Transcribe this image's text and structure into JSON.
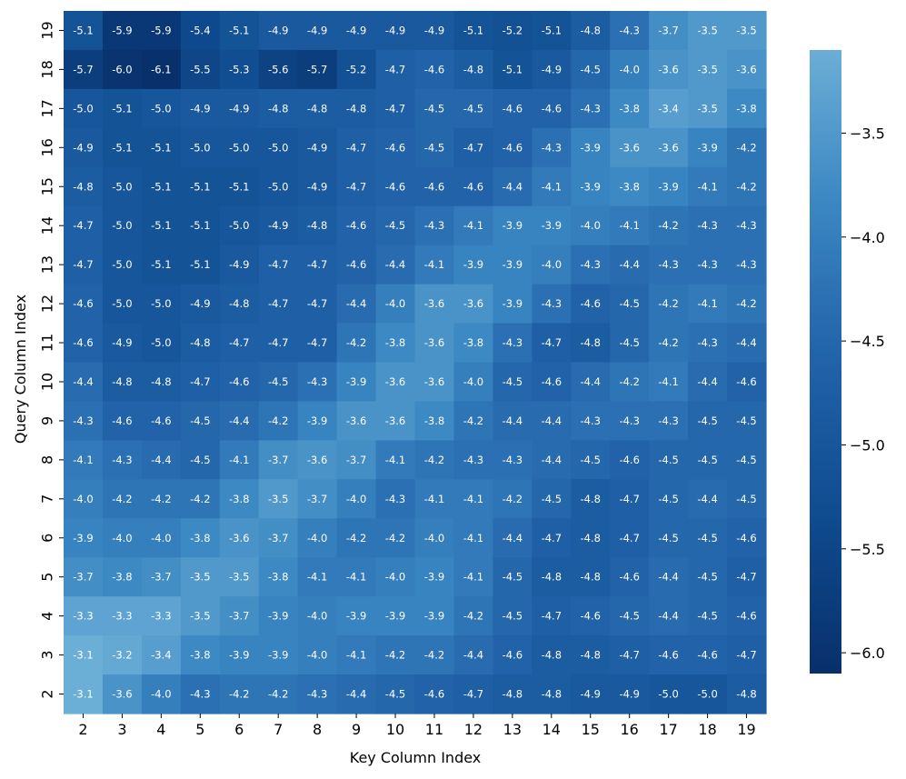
{
  "chart_data": {
    "type": "heatmap",
    "title": "",
    "xlabel": "Key Column Index",
    "ylabel": "Query Column Index",
    "x_categories": [
      "2",
      "3",
      "4",
      "5",
      "6",
      "7",
      "8",
      "9",
      "10",
      "11",
      "12",
      "13",
      "14",
      "15",
      "16",
      "17",
      "18",
      "19"
    ],
    "y_categories_top_to_bottom": [
      "19",
      "18",
      "17",
      "16",
      "15",
      "14",
      "13",
      "12",
      "11",
      "10",
      "9",
      "8",
      "7",
      "6",
      "5",
      "4",
      "3",
      "2"
    ],
    "values": [
      [
        "-5.1",
        "-5.9",
        "-5.9",
        "-5.4",
        "-5.1",
        "-4.9",
        "-4.9",
        "-4.9",
        "-4.9",
        "-4.9",
        "-5.1",
        "-5.2",
        "-5.1",
        "-4.8",
        "-4.3",
        "-3.7",
        "-3.5",
        "-3.5"
      ],
      [
        "-5.7",
        "-6.0",
        "-6.1",
        "-5.5",
        "-5.3",
        "-5.6",
        "-5.7",
        "-5.2",
        "-4.7",
        "-4.6",
        "-4.8",
        "-5.1",
        "-4.9",
        "-4.5",
        "-4.0",
        "-3.6",
        "-3.5",
        "-3.6"
      ],
      [
        "-5.0",
        "-5.1",
        "-5.0",
        "-4.9",
        "-4.9",
        "-4.8",
        "-4.8",
        "-4.8",
        "-4.7",
        "-4.5",
        "-4.5",
        "-4.6",
        "-4.6",
        "-4.3",
        "-3.8",
        "-3.4",
        "-3.5",
        "-3.8"
      ],
      [
        "-4.9",
        "-5.1",
        "-5.1",
        "-5.0",
        "-5.0",
        "-5.0",
        "-4.9",
        "-4.7",
        "-4.6",
        "-4.5",
        "-4.7",
        "-4.6",
        "-4.3",
        "-3.9",
        "-3.6",
        "-3.6",
        "-3.9",
        "-4.2"
      ],
      [
        "-4.8",
        "-5.0",
        "-5.1",
        "-5.1",
        "-5.1",
        "-5.0",
        "-4.9",
        "-4.7",
        "-4.6",
        "-4.6",
        "-4.6",
        "-4.4",
        "-4.1",
        "-3.9",
        "-3.8",
        "-3.9",
        "-4.1",
        "-4.2"
      ],
      [
        "-4.7",
        "-5.0",
        "-5.1",
        "-5.1",
        "-5.0",
        "-4.9",
        "-4.8",
        "-4.6",
        "-4.5",
        "-4.3",
        "-4.1",
        "-3.9",
        "-3.9",
        "-4.0",
        "-4.1",
        "-4.2",
        "-4.3",
        "-4.3"
      ],
      [
        "-4.7",
        "-5.0",
        "-5.1",
        "-5.1",
        "-4.9",
        "-4.7",
        "-4.7",
        "-4.6",
        "-4.4",
        "-4.1",
        "-3.9",
        "-3.9",
        "-4.0",
        "-4.3",
        "-4.4",
        "-4.3",
        "-4.3",
        "-4.3"
      ],
      [
        "-4.6",
        "-5.0",
        "-5.0",
        "-4.9",
        "-4.8",
        "-4.7",
        "-4.7",
        "-4.4",
        "-4.0",
        "-3.6",
        "-3.6",
        "-3.9",
        "-4.3",
        "-4.6",
        "-4.5",
        "-4.2",
        "-4.1",
        "-4.2"
      ],
      [
        "-4.6",
        "-4.9",
        "-5.0",
        "-4.8",
        "-4.7",
        "-4.7",
        "-4.7",
        "-4.2",
        "-3.8",
        "-3.6",
        "-3.8",
        "-4.3",
        "-4.7",
        "-4.8",
        "-4.5",
        "-4.2",
        "-4.3",
        "-4.4"
      ],
      [
        "-4.4",
        "-4.8",
        "-4.8",
        "-4.7",
        "-4.6",
        "-4.5",
        "-4.3",
        "-3.9",
        "-3.6",
        "-3.6",
        "-4.0",
        "-4.5",
        "-4.6",
        "-4.4",
        "-4.2",
        "-4.1",
        "-4.4",
        "-4.6"
      ],
      [
        "-4.3",
        "-4.6",
        "-4.6",
        "-4.5",
        "-4.4",
        "-4.2",
        "-3.9",
        "-3.6",
        "-3.6",
        "-3.8",
        "-4.2",
        "-4.4",
        "-4.4",
        "-4.3",
        "-4.3",
        "-4.3",
        "-4.5",
        "-4.5"
      ],
      [
        "-4.1",
        "-4.3",
        "-4.4",
        "-4.5",
        "-4.1",
        "-3.7",
        "-3.6",
        "-3.7",
        "-4.1",
        "-4.2",
        "-4.3",
        "-4.3",
        "-4.4",
        "-4.5",
        "-4.6",
        "-4.5",
        "-4.5",
        "-4.5"
      ],
      [
        "-4.0",
        "-4.2",
        "-4.2",
        "-4.2",
        "-3.8",
        "-3.5",
        "-3.7",
        "-4.0",
        "-4.3",
        "-4.1",
        "-4.1",
        "-4.2",
        "-4.5",
        "-4.8",
        "-4.7",
        "-4.5",
        "-4.4",
        "-4.5"
      ],
      [
        "-3.9",
        "-4.0",
        "-4.0",
        "-3.8",
        "-3.6",
        "-3.7",
        "-4.0",
        "-4.2",
        "-4.2",
        "-4.0",
        "-4.1",
        "-4.4",
        "-4.7",
        "-4.8",
        "-4.7",
        "-4.5",
        "-4.5",
        "-4.6"
      ],
      [
        "-3.7",
        "-3.8",
        "-3.7",
        "-3.5",
        "-3.5",
        "-3.8",
        "-4.1",
        "-4.1",
        "-4.0",
        "-3.9",
        "-4.1",
        "-4.5",
        "-4.8",
        "-4.8",
        "-4.6",
        "-4.4",
        "-4.5",
        "-4.7"
      ],
      [
        "-3.3",
        "-3.3",
        "-3.3",
        "-3.5",
        "-3.7",
        "-3.9",
        "-4.0",
        "-3.9",
        "-3.9",
        "-3.9",
        "-4.2",
        "-4.5",
        "-4.7",
        "-4.6",
        "-4.5",
        "-4.4",
        "-4.5",
        "-4.6"
      ],
      [
        "-3.1",
        "-3.2",
        "-3.4",
        "-3.8",
        "-3.9",
        "-3.9",
        "-4.0",
        "-4.1",
        "-4.2",
        "-4.2",
        "-4.4",
        "-4.6",
        "-4.8",
        "-4.8",
        "-4.7",
        "-4.6",
        "-4.6",
        "-4.7"
      ],
      [
        "-3.1",
        "-3.6",
        "-4.0",
        "-4.3",
        "-4.2",
        "-4.2",
        "-4.3",
        "-4.4",
        "-4.5",
        "-4.6",
        "-4.7",
        "-4.8",
        "-4.8",
        "-4.9",
        "-4.9",
        "-5.0",
        "-5.0",
        "-4.8"
      ]
    ],
    "colorbar": {
      "min": -6.1,
      "max": -3.1,
      "ticks": [
        "−3.5",
        "−4.0",
        "−4.5",
        "−5.0",
        "−5.5",
        "−6.0"
      ],
      "tick_values": [
        -3.5,
        -4.0,
        -4.5,
        -5.0,
        -5.5,
        -6.0
      ]
    },
    "colormap": {
      "low": "#08306b",
      "high": "#6baed6"
    },
    "grid": false,
    "legend": "colorbar-right"
  }
}
